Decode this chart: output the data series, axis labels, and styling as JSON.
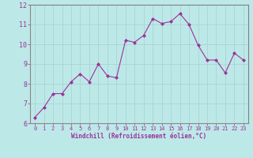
{
  "x": [
    0,
    1,
    2,
    3,
    4,
    5,
    6,
    7,
    8,
    9,
    10,
    11,
    12,
    13,
    14,
    15,
    16,
    17,
    18,
    19,
    20,
    21,
    22,
    23
  ],
  "y": [
    6.3,
    6.8,
    7.5,
    7.5,
    8.1,
    8.5,
    8.1,
    9.0,
    8.4,
    8.3,
    10.2,
    10.1,
    10.45,
    11.3,
    11.05,
    11.15,
    11.55,
    11.0,
    9.95,
    9.2,
    9.2,
    8.55,
    9.55,
    9.2
  ],
  "line_color": "#993399",
  "marker": "D",
  "marker_size": 2.0,
  "bg_color": "#bde8e8",
  "grid_color": "#aad4d4",
  "xlabel": "Windchill (Refroidissement éolien,°C)",
  "tick_color": "#993399",
  "ylim": [
    6,
    12
  ],
  "xlim": [
    -0.5,
    23.5
  ],
  "yticks": [
    6,
    7,
    8,
    9,
    10,
    11,
    12
  ],
  "xticks": [
    0,
    1,
    2,
    3,
    4,
    5,
    6,
    7,
    8,
    9,
    10,
    11,
    12,
    13,
    14,
    15,
    16,
    17,
    18,
    19,
    20,
    21,
    22,
    23
  ],
  "spine_color": "#808080",
  "left_spine_color": "#808080"
}
